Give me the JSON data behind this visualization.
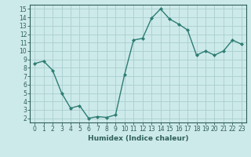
{
  "x": [
    0,
    1,
    2,
    3,
    4,
    5,
    6,
    7,
    8,
    9,
    10,
    11,
    12,
    13,
    14,
    15,
    16,
    17,
    18,
    19,
    20,
    21,
    22,
    23
  ],
  "y": [
    8.5,
    8.8,
    7.7,
    5.0,
    3.2,
    3.5,
    2.0,
    2.2,
    2.1,
    2.4,
    7.2,
    11.3,
    11.5,
    13.9,
    15.0,
    13.8,
    13.2,
    12.5,
    9.5,
    10.0,
    9.5,
    10.0,
    11.3,
    10.8
  ],
  "line_color": "#2e7d73",
  "marker": "D",
  "marker_size": 2,
  "bg_color": "#cdeaea",
  "grid_color": "#aacece",
  "xlabel": "Humidex (Indice chaleur)",
  "xlim": [
    -0.5,
    23.5
  ],
  "ylim": [
    1.5,
    15.5
  ],
  "yticks": [
    2,
    3,
    4,
    5,
    6,
    7,
    8,
    9,
    10,
    11,
    12,
    13,
    14,
    15
  ],
  "xticks": [
    0,
    1,
    2,
    3,
    4,
    5,
    6,
    7,
    8,
    9,
    10,
    11,
    12,
    13,
    14,
    15,
    16,
    17,
    18,
    19,
    20,
    21,
    22,
    23
  ],
  "font_color": "#2e5f5a",
  "axis_color": "#2e5f5a",
  "tick_fontsize": 5.5,
  "xlabel_fontsize": 6.5
}
